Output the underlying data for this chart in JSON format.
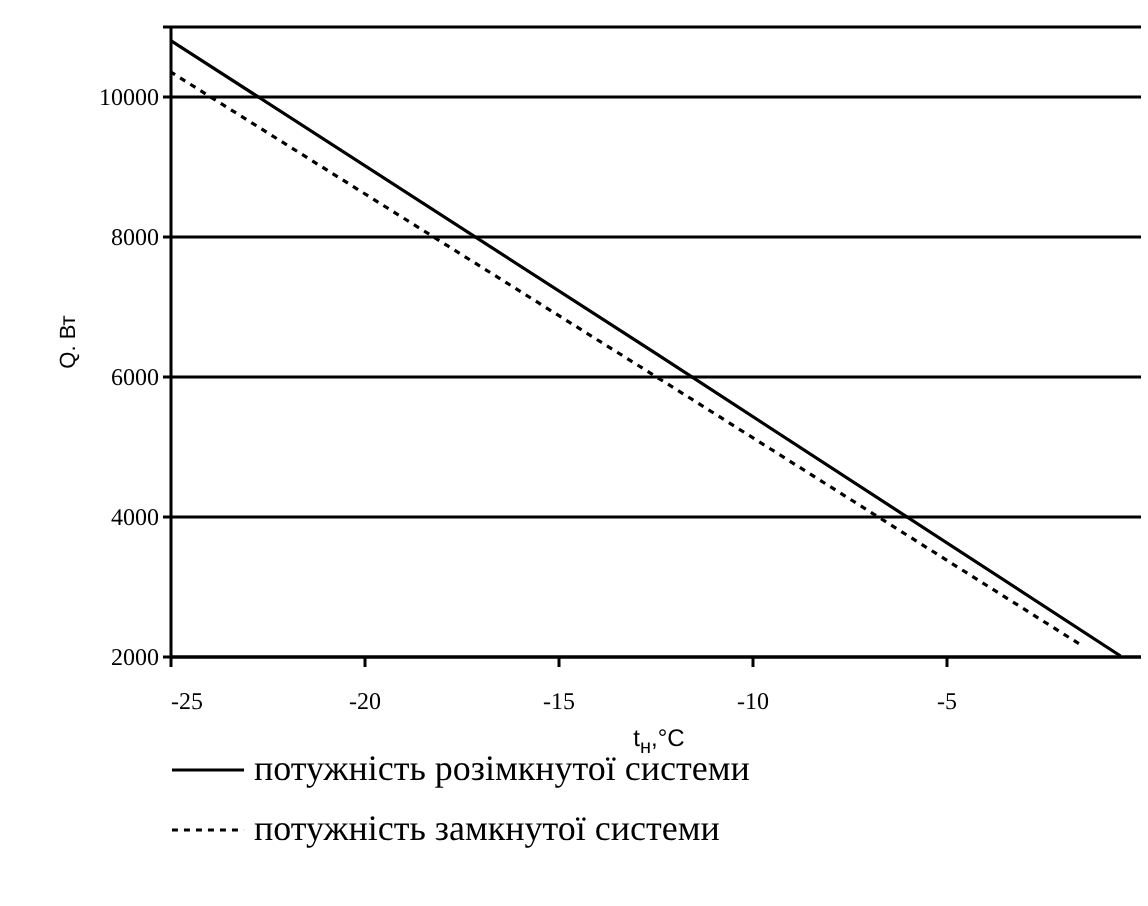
{
  "chart_data": {
    "type": "line",
    "xlabel": "t$_{н}$,°C",
    "ylabel": "Q. Вт",
    "xlim": [
      -25,
      0
    ],
    "xticks": [
      -25,
      -20,
      -15,
      -10,
      -5
    ],
    "ylim": [
      2000,
      11000
    ],
    "yticks": [
      2000,
      4000,
      6000,
      8000,
      10000,
      {
        "value": 11000,
        "label": null
      }
    ],
    "grid": "y",
    "legend": "bottom",
    "series": [
      {
        "name": "потужність розімкнутої системи",
        "color": "#000000",
        "line_style": "solid",
        "x": [
          -25,
          -12.5,
          -0.5
        ],
        "values": [
          10800,
          6330,
          2000
        ]
      },
      {
        "name": "потужність замкнутої системи",
        "color": "#000000",
        "line_style": "dotted",
        "x": [
          -25,
          -12.5,
          -1.5
        ],
        "values": [
          10350,
          6000,
          2150
        ]
      }
    ]
  }
}
